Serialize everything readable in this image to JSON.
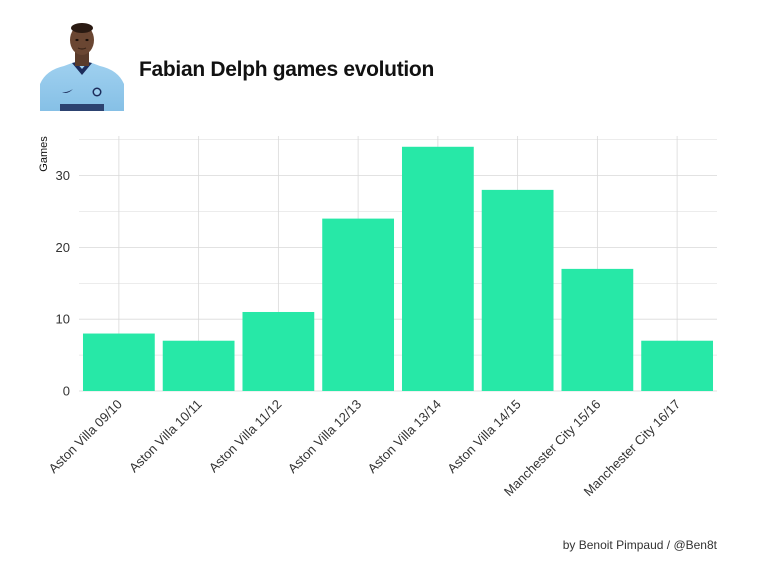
{
  "header": {
    "title": "Fabian Delph games evolution",
    "photo_icon": "player-portrait-icon"
  },
  "caption": "by Benoit Pimpaud / @Ben8t",
  "chart_data": {
    "type": "bar",
    "title": "Fabian Delph games evolution",
    "xlabel": "",
    "ylabel": "Games",
    "categories": [
      "Aston Villa 09/10",
      "Aston Villa 10/11",
      "Aston Villa 11/12",
      "Aston Villa 12/13",
      "Aston Villa 13/14",
      "Aston Villa 14/15",
      "Manchester City 15/16",
      "Manchester City 16/17"
    ],
    "values": [
      8,
      7,
      11,
      24,
      34,
      28,
      17,
      7
    ],
    "ylim": [
      0,
      35.5
    ],
    "yticks": [
      0,
      10,
      20,
      30
    ],
    "grid": true,
    "bar_color": "#27e8a7"
  }
}
